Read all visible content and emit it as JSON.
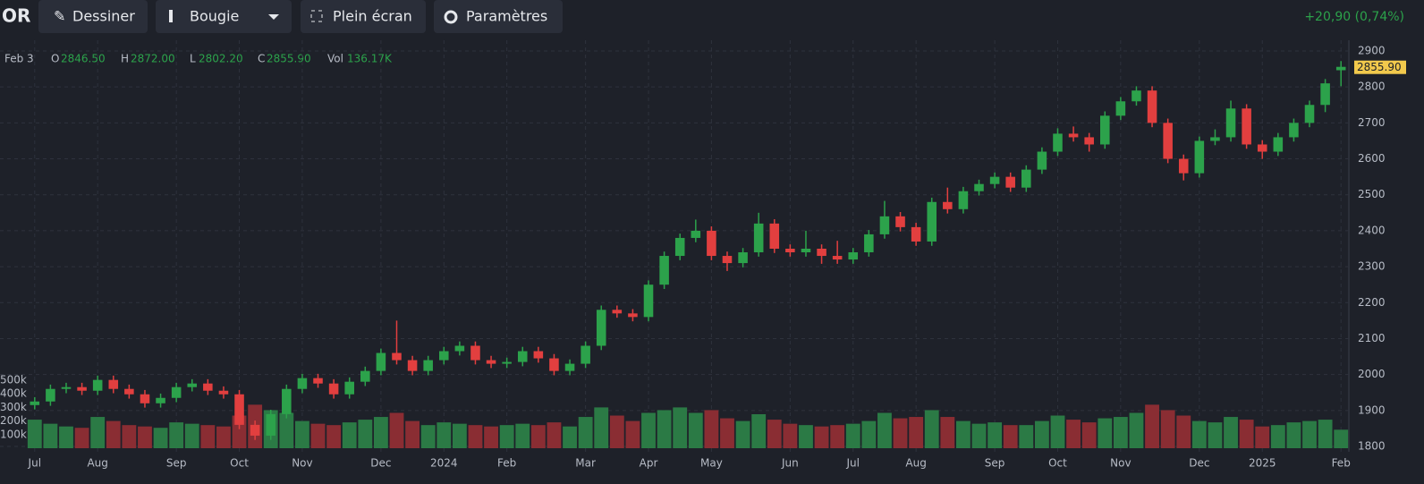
{
  "toolbar": {
    "symbol": "OR",
    "buttons": [
      "Dessiner",
      "Bougie",
      "Plein écran",
      "Paramètres"
    ],
    "change": "+20,90 (0,74%)"
  },
  "legend": {
    "date": "Feb 3",
    "labels": [
      "O",
      "H",
      "L",
      "C",
      "Vol"
    ],
    "values": [
      "2846.50",
      "2872.00",
      "2802.20",
      "2855.90",
      "136.17K"
    ]
  },
  "chart_data": {
    "type": "candlestick",
    "categories": [
      "Jul",
      null,
      null,
      null,
      "Aug",
      null,
      null,
      null,
      null,
      "Sep",
      null,
      null,
      null,
      "Oct",
      null,
      null,
      null,
      "Nov",
      null,
      null,
      null,
      null,
      "Dec",
      null,
      null,
      null,
      "2024",
      null,
      null,
      null,
      "Feb",
      null,
      null,
      null,
      null,
      "Mar",
      null,
      null,
      null,
      "Apr",
      null,
      null,
      null,
      "May",
      null,
      null,
      null,
      null,
      "Jun",
      null,
      null,
      null,
      "Jul",
      null,
      null,
      null,
      "Aug",
      null,
      null,
      null,
      null,
      "Sep",
      null,
      null,
      null,
      "Oct",
      null,
      null,
      null,
      "Nov",
      null,
      null,
      null,
      null,
      "Dec",
      null,
      null,
      null,
      "2025",
      null,
      null,
      null,
      null,
      "Feb"
    ],
    "open": [
      1915,
      1925,
      1960,
      1965,
      1955,
      1985,
      1960,
      1945,
      1920,
      1935,
      1965,
      1975,
      1955,
      1945,
      1860,
      1830,
      1890,
      1960,
      1990,
      1975,
      1945,
      1980,
      2010,
      2060,
      2040,
      2010,
      2040,
      2065,
      2080,
      2040,
      2030,
      2035,
      2065,
      2045,
      2010,
      2030,
      2080,
      2180,
      2170,
      2160,
      2250,
      2330,
      2380,
      2400,
      2330,
      2310,
      2340,
      2420,
      2350,
      2340,
      2350,
      2330,
      2320,
      2340,
      2390,
      2440,
      2410,
      2370,
      2480,
      2460,
      2510,
      2530,
      2550,
      2520,
      2570,
      2620,
      2670,
      2660,
      2640,
      2720,
      2760,
      2790,
      2700,
      2600,
      2560,
      2650,
      2660,
      2740,
      2640,
      2620,
      2660,
      2700,
      2750,
      2846.5
    ],
    "high": [
      1937,
      1972,
      1977,
      1977,
      1997,
      1997,
      1972,
      1957,
      1947,
      1977,
      1987,
      1987,
      1967,
      1957,
      1872,
      1902,
      1972,
      2002,
      2002,
      1987,
      1992,
      2022,
      2072,
      2150,
      2052,
      2052,
      2077,
      2092,
      2092,
      2052,
      2047,
      2077,
      2077,
      2057,
      2042,
      2092,
      2192,
      2192,
      2182,
      2262,
      2342,
      2392,
      2431,
      2412,
      2342,
      2352,
      2450,
      2432,
      2362,
      2400,
      2362,
      2372,
      2352,
      2402,
      2483,
      2452,
      2422,
      2492,
      2520,
      2522,
      2542,
      2562,
      2562,
      2582,
      2632,
      2685,
      2690,
      2672,
      2732,
      2772,
      2802,
      2802,
      2712,
      2612,
      2662,
      2682,
      2762,
      2752,
      2652,
      2672,
      2712,
      2762,
      2822,
      2872
    ],
    "low": [
      1903,
      1913,
      1948,
      1943,
      1943,
      1948,
      1933,
      1908,
      1908,
      1923,
      1953,
      1943,
      1933,
      1848,
      1818,
      1818,
      1878,
      1948,
      1963,
      1933,
      1933,
      1968,
      1998,
      2028,
      1998,
      1998,
      2028,
      2053,
      2028,
      2018,
      2018,
      2023,
      2033,
      1998,
      1998,
      2018,
      2068,
      2158,
      2148,
      2148,
      2238,
      2318,
      2368,
      2318,
      2288,
      2298,
      2328,
      2338,
      2328,
      2328,
      2308,
      2308,
      2308,
      2328,
      2378,
      2398,
      2358,
      2358,
      2448,
      2448,
      2498,
      2518,
      2508,
      2508,
      2558,
      2608,
      2648,
      2620,
      2628,
      2708,
      2748,
      2688,
      2588,
      2540,
      2548,
      2638,
      2648,
      2628,
      2600,
      2608,
      2648,
      2688,
      2730,
      2802.2
    ],
    "close": [
      1925,
      1960,
      1965,
      1955,
      1985,
      1960,
      1945,
      1920,
      1935,
      1965,
      1975,
      1955,
      1945,
      1860,
      1830,
      1890,
      1960,
      1990,
      1975,
      1945,
      1980,
      2010,
      2060,
      2040,
      2010,
      2040,
      2065,
      2080,
      2040,
      2030,
      2035,
      2065,
      2045,
      2010,
      2030,
      2080,
      2180,
      2170,
      2160,
      2250,
      2330,
      2380,
      2400,
      2330,
      2310,
      2340,
      2420,
      2350,
      2340,
      2350,
      2330,
      2320,
      2340,
      2390,
      2440,
      2410,
      2370,
      2480,
      2460,
      2510,
      2530,
      2550,
      2520,
      2570,
      2620,
      2670,
      2660,
      2640,
      2720,
      2760,
      2790,
      2700,
      2600,
      2560,
      2650,
      2660,
      2740,
      2640,
      2620,
      2660,
      2700,
      2750,
      2810,
      2855.9
    ],
    "volume": [
      210,
      180,
      160,
      150,
      230,
      200,
      170,
      160,
      150,
      190,
      180,
      170,
      160,
      240,
      320,
      280,
      260,
      200,
      180,
      170,
      190,
      210,
      230,
      260,
      200,
      170,
      190,
      180,
      170,
      160,
      170,
      180,
      170,
      190,
      160,
      230,
      300,
      240,
      200,
      260,
      280,
      300,
      260,
      280,
      220,
      200,
      250,
      210,
      180,
      170,
      160,
      170,
      180,
      200,
      260,
      220,
      230,
      280,
      230,
      200,
      180,
      190,
      170,
      170,
      200,
      240,
      210,
      190,
      220,
      230,
      260,
      320,
      280,
      240,
      200,
      190,
      230,
      210,
      160,
      170,
      190,
      200,
      210,
      136.17
    ],
    "ylim": [
      1800,
      2900
    ],
    "yticks": [
      1800,
      1900,
      2000,
      2100,
      2200,
      2300,
      2400,
      2500,
      2600,
      2700,
      2800,
      2900
    ],
    "volume_lim": [
      0,
      500
    ],
    "volume_ticks": [
      {
        "value": 100,
        "label": "100k"
      },
      {
        "value": 200,
        "label": "200k"
      },
      {
        "value": 300,
        "label": "300k"
      },
      {
        "value": 400,
        "label": "400k"
      },
      {
        "value": 500,
        "label": "500k"
      }
    ],
    "last_price_label": "2855.90",
    "up_color": "#2ca24b",
    "down_color": "#e23f3f",
    "volume_up_color": "#2b7a45",
    "volume_down_color": "#8a2d33",
    "grid": true
  }
}
